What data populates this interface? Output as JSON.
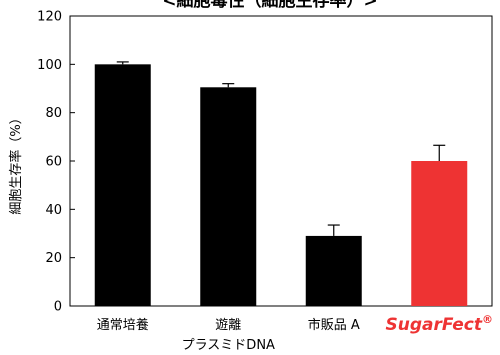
{
  "chart_data": {
    "type": "bar",
    "title": "<細胞毒性（細胞生存率）>",
    "ylabel": "細胞生存率（%）",
    "xlabel": "",
    "ylim": [
      0,
      120
    ],
    "yticks": [
      "0",
      "20",
      "40",
      "60",
      "80",
      "100",
      "120"
    ],
    "categories": [
      {
        "lines": [
          "通常培養"
        ],
        "styled": false
      },
      {
        "lines": [
          "遊離",
          "プラスミドDNA"
        ],
        "styled": false
      },
      {
        "lines": [
          "市販品 A"
        ],
        "styled": false
      },
      {
        "lines": [
          "SugarFect"
        ],
        "sup": "®",
        "styled": true
      }
    ],
    "values": [
      100,
      90.5,
      29,
      60
    ],
    "errors": [
      1,
      1.5,
      4.5,
      6.5
    ],
    "colors": [
      "#000000",
      "#000000",
      "#000000",
      "#ee3333"
    ],
    "grid": false
  }
}
